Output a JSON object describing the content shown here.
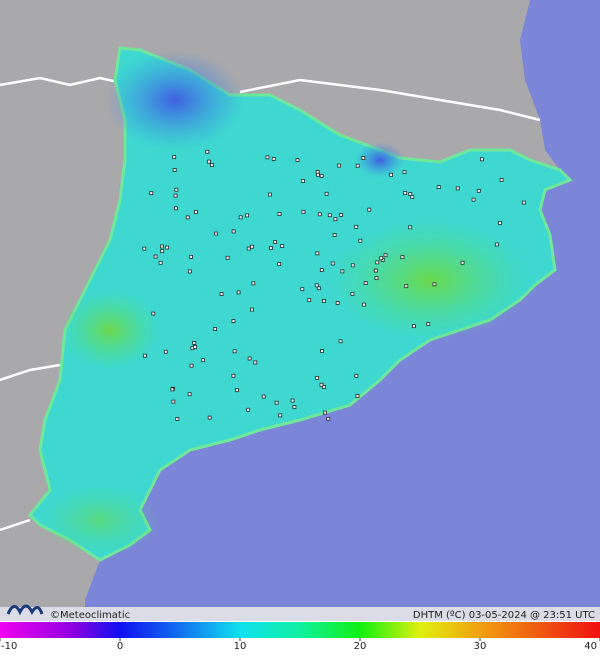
{
  "footer": {
    "credit": "©Meteoclimatic",
    "caption": "DHTM (ºC) 03-05-2024 @ 23:51 UTC"
  },
  "scale": {
    "range": [
      -10,
      40
    ],
    "ticks": [
      -10,
      0,
      10,
      20,
      30,
      40
    ]
  }
}
